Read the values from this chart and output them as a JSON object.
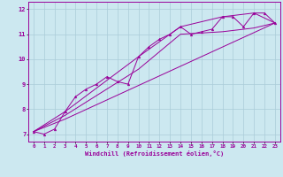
{
  "xlabel": "Windchill (Refroidissement éolien,°C)",
  "bg_color": "#cce8f0",
  "line_color": "#990099",
  "grid_color": "#aaccd8",
  "xlim": [
    -0.5,
    23.5
  ],
  "ylim": [
    6.7,
    12.3
  ],
  "yticks": [
    7,
    8,
    9,
    10,
    11,
    12
  ],
  "xticks": [
    0,
    1,
    2,
    3,
    4,
    5,
    6,
    7,
    8,
    9,
    10,
    11,
    12,
    13,
    14,
    15,
    16,
    17,
    18,
    19,
    20,
    21,
    22,
    23
  ],
  "series1_x": [
    0,
    1,
    2,
    3,
    4,
    5,
    6,
    7,
    8,
    9,
    10,
    11,
    12,
    13,
    14,
    15,
    16,
    17,
    18,
    19,
    20,
    21,
    22,
    23
  ],
  "series1_y": [
    7.1,
    7.0,
    7.2,
    7.9,
    8.5,
    8.8,
    9.0,
    9.3,
    9.1,
    9.0,
    10.1,
    10.5,
    10.8,
    11.0,
    11.3,
    11.0,
    11.1,
    11.2,
    11.7,
    11.7,
    11.3,
    11.85,
    11.85,
    11.45
  ],
  "series2_x": [
    0,
    3,
    10,
    14,
    18,
    21,
    23
  ],
  "series2_y": [
    7.1,
    7.9,
    10.1,
    11.3,
    11.7,
    11.85,
    11.45
  ],
  "series3_x": [
    0,
    3,
    10,
    14,
    18,
    21,
    23
  ],
  "series3_y": [
    7.1,
    7.75,
    9.6,
    11.0,
    11.1,
    11.25,
    11.45
  ],
  "series4_x": [
    0,
    3,
    23
  ],
  "series4_y": [
    7.1,
    7.6,
    11.45
  ]
}
